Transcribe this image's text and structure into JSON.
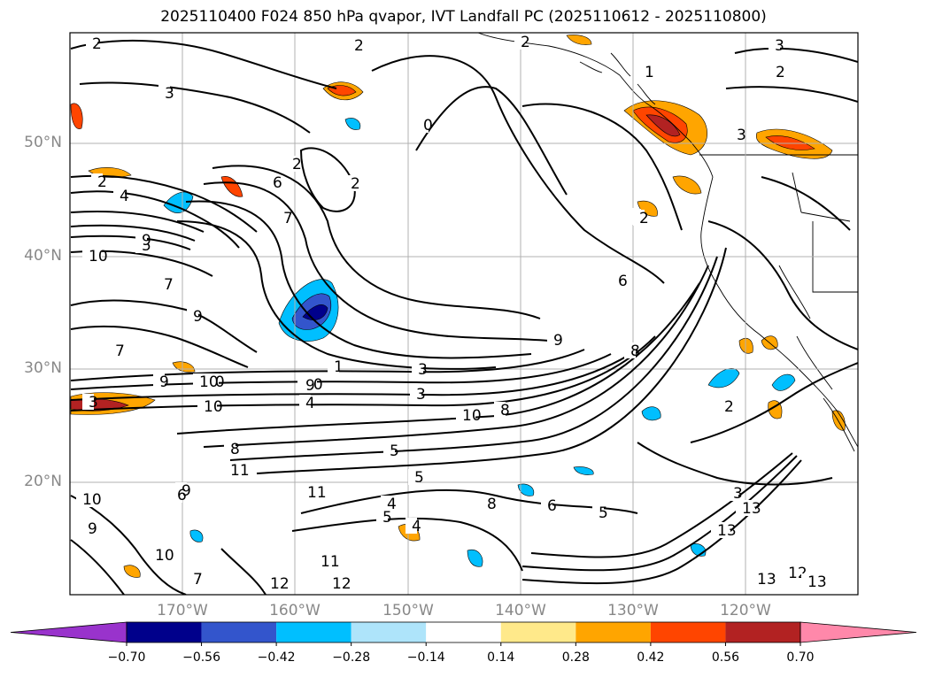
{
  "title": "2025110400 F024 850 hPa qvapor, IVT Landfall PC (2025110612 - 2025110800)",
  "lat_labels": [
    "50°N",
    "40°N",
    "30°N",
    "20°N"
  ],
  "lon_labels": [
    "170°W",
    "160°W",
    "150°W",
    "140°W",
    "130°W",
    "120°W"
  ],
  "colorbar": {
    "bounds": [
      "−0.70",
      "−0.56",
      "−0.42",
      "−0.28",
      "−0.14",
      "0.14",
      "0.28",
      "0.42",
      "0.56",
      "0.70"
    ],
    "colors": [
      "#9933cc",
      "#00008b",
      "#3355cc",
      "#00bfff",
      "#aee4fa",
      "#ffffff",
      "#ffe98a",
      "#ffa500",
      "#ff4500",
      "#b22222",
      "#ff88aa"
    ]
  },
  "contour_labels": [
    "2",
    "3",
    "2",
    "2",
    "3",
    "1",
    "2",
    "0",
    "2",
    "4",
    "5",
    "6",
    "2",
    "7",
    "8",
    "9",
    "10",
    "7",
    "9",
    "7",
    "9",
    "8",
    "6",
    "7",
    "10",
    "9",
    "1",
    "3",
    "10",
    "4",
    "10",
    "3",
    "10",
    "9",
    "2",
    "3",
    "10",
    "8",
    "8",
    "11",
    "5",
    "4",
    "5",
    "4",
    "6",
    "8",
    "11",
    "9",
    "7",
    "6",
    "5",
    "9",
    "10",
    "5",
    "10",
    "12",
    "13",
    "11",
    "12",
    "13",
    "12",
    "13",
    "3",
    "13",
    "2",
    "3",
    "2"
  ],
  "map_colors": {
    "land": "#ffffff",
    "coast": "#000000",
    "grid": "#b0b0b0"
  }
}
